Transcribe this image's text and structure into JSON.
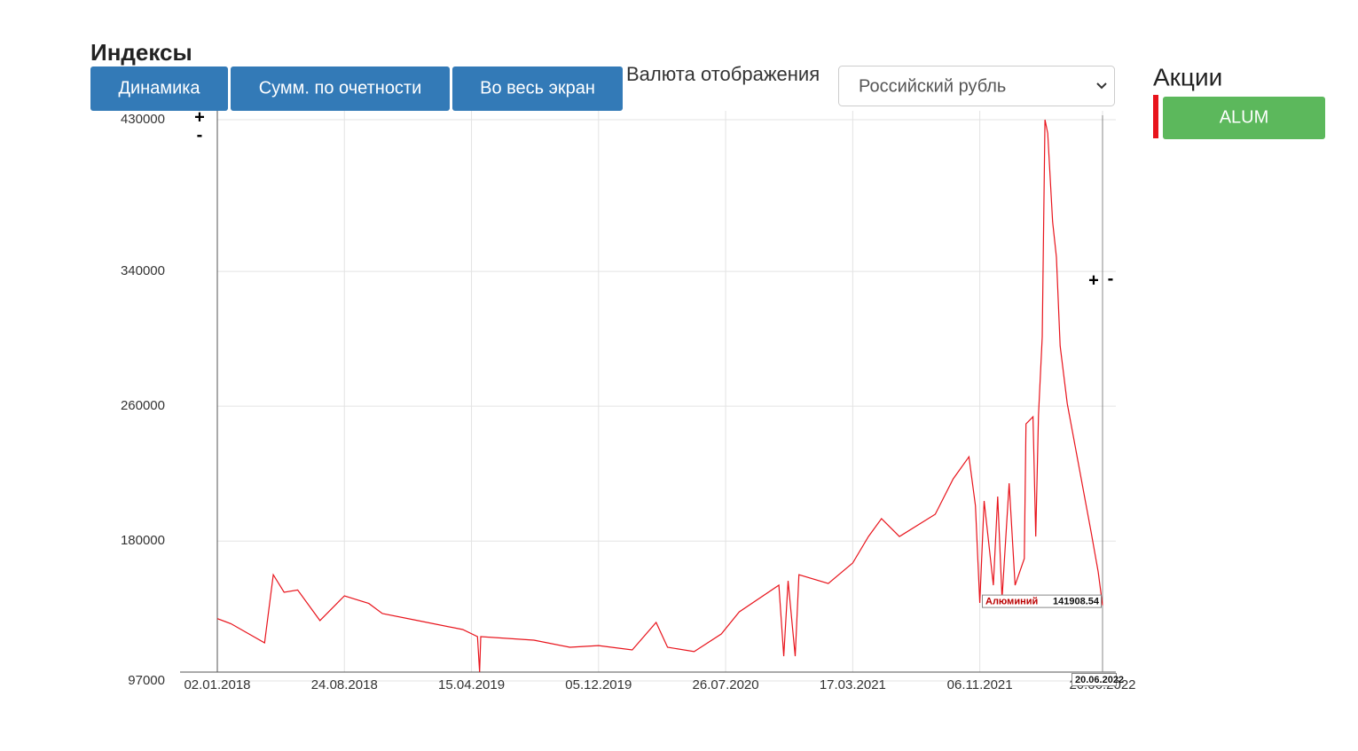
{
  "header": {
    "title": "Индексы"
  },
  "buttons": [
    "Динамика",
    "Сумм. по очетности",
    "Во весь экран"
  ],
  "currency": {
    "label": "Валюта отображения",
    "selected": "Российский рубль"
  },
  "sidebar": {
    "title": "Акции",
    "button": "ALUM"
  },
  "zoom_controls": [
    "+",
    "-"
  ],
  "chart_data": {
    "type": "line",
    "x": [
      "02.01.2018",
      "27.01.2018",
      "30.03.2018",
      "15.04.2018",
      "05.05.2018",
      "30.05.2018",
      "10.07.2018",
      "24.08.2018",
      "08.10.2018",
      "02.11.2018",
      "06.01.2019",
      "30.03.2019",
      "26.04.2019",
      "30.04.2019",
      "02.05.2019",
      "08.08.2019",
      "13.10.2019",
      "05.12.2019",
      "05.02.2020",
      "20.03.2020",
      "10.04.2020",
      "29.05.2020",
      "18.07.2020",
      "20.08.2020",
      "01.11.2020",
      "10.11.2020",
      "18.11.2020",
      "01.12.2020",
      "08.12.2020",
      "31.01.2021",
      "17.03.2021",
      "15.04.2021",
      "09.05.2021",
      "11.06.2021",
      "16.08.2021",
      "18.09.2021",
      "17.10.2021",
      "29.10.2021",
      "06.11.2021",
      "14.11.2021",
      "01.12.2021",
      "09.12.2021",
      "17.12.2021",
      "30.12.2021",
      "10.01.2022",
      "27.01.2022",
      "30.01.2022",
      "12.02.2022",
      "17.02.2022",
      "22.02.2022",
      "01.03.2022",
      "06.03.2022",
      "11.03.2022",
      "20.03.2022",
      "27.03.2022",
      "03.04.2022",
      "16.04.2022",
      "30.05.2022",
      "12.06.2022",
      "20.06.2022"
    ],
    "series": [
      {
        "name": "Алюминий",
        "color": "#e8141c",
        "values": [
          134000,
          131000,
          119600,
          160000,
          149600,
          151000,
          132800,
          147500,
          143000,
          137000,
          132800,
          127500,
          123300,
          102300,
          123300,
          121200,
          117000,
          118000,
          115400,
          131700,
          117000,
          114400,
          124900,
          138000,
          153800,
          111700,
          156400,
          111700,
          160000,
          154800,
          167000,
          182700,
          193300,
          182700,
          195900,
          216900,
          230000,
          201000,
          143300,
          203800,
          153800,
          206400,
          145900,
          214300,
          153800,
          169600,
          249500,
          253700,
          182700,
          254800,
          301100,
          430000,
          422000,
          369500,
          348400,
          295800,
          261600,
          185400,
          161700,
          141908.54
        ]
      }
    ],
    "xlim": [
      "02.01.2018",
      "20.06.2022"
    ],
    "xticks": [
      "02.01.2018",
      "24.08.2018",
      "15.04.2019",
      "05.12.2019",
      "26.07.2020",
      "17.03.2021",
      "06.11.2021",
      "20.06.2022"
    ],
    "ylim": [
      97000,
      430000
    ],
    "yticks": [
      97000,
      180000,
      260000,
      340000,
      430000
    ],
    "grid": true
  }
}
